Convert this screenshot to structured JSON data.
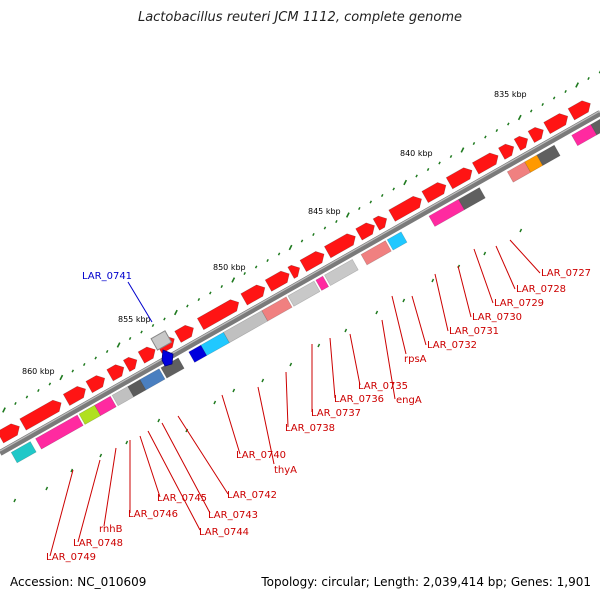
{
  "title": "Lactobacillus reuteri JCM 1112, complete genome",
  "accession": "Accession: NC_010609",
  "topology": "Topology: circular; Length: 2,039,414 bp; Genes: 1,901",
  "colors": {
    "backbone": "#7a7a7a",
    "tick": "#1f7a1f",
    "label_red": "#cc0000",
    "label_blue": "#0000cc",
    "gene_red": "#ff1414"
  },
  "scale_ticks": [
    "835 kbp",
    "840 kbp",
    "845 kbp",
    "850 kbp",
    "855 kbp",
    "860 kbp"
  ],
  "gene_labels": [
    "LAR_0727",
    "LAR_0728",
    "LAR_0729",
    "LAR_0730",
    "LAR_0731",
    "LAR_0732",
    "rpsA",
    "engA",
    "LAR_0735",
    "LAR_0736",
    "LAR_0737",
    "LAR_0738",
    "thyA",
    "LAR_0740",
    "LAR_0742",
    "LAR_0743",
    "LAR_0744",
    "LAR_0745",
    "LAR_0746",
    "rnhB",
    "LAR_0748",
    "LAR_0749"
  ],
  "highlight_label": "LAR_0741"
}
